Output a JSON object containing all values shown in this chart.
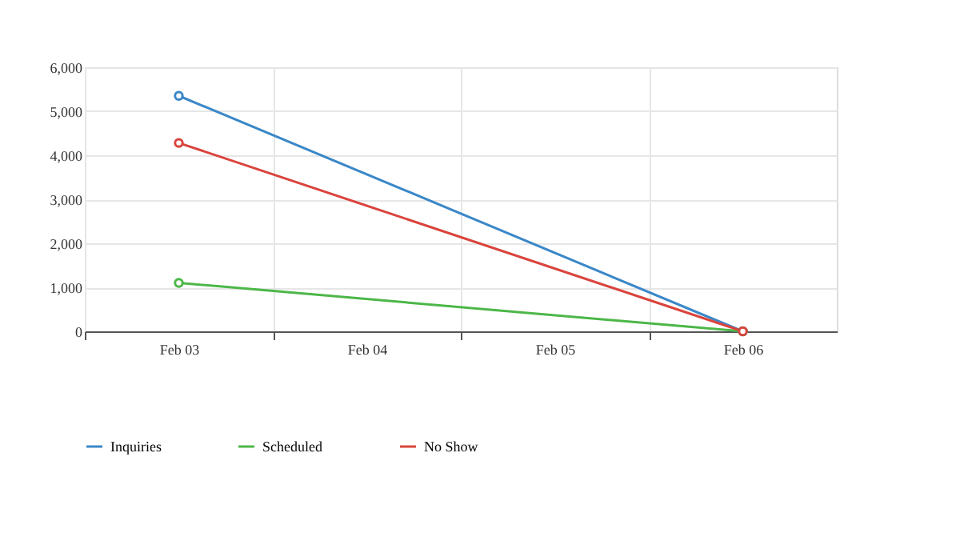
{
  "chart_data": {
    "type": "line",
    "categories": [
      "Feb 03",
      "Feb 04",
      "Feb 05",
      "Feb 06"
    ],
    "series": [
      {
        "name": "Inquiries",
        "color": "#3a87c8",
        "values": [
          5350,
          null,
          null,
          0
        ]
      },
      {
        "name": "Scheduled",
        "color": "#4cb748",
        "values": [
          1100,
          null,
          null,
          0
        ]
      },
      {
        "name": "No Show",
        "color": "#d9443c",
        "values": [
          4280,
          null,
          null,
          0
        ]
      }
    ],
    "ylim": [
      0,
      6000
    ],
    "yticks": [
      {
        "value": 0,
        "label": "0"
      },
      {
        "value": 1000,
        "label": "1,000"
      },
      {
        "value": 2000,
        "label": "2,000"
      },
      {
        "value": 3000,
        "label": "3,000"
      },
      {
        "value": 4000,
        "label": "4,000"
      },
      {
        "value": 5000,
        "label": "5,000"
      },
      {
        "value": 6000,
        "label": "6,000"
      }
    ],
    "grid": true,
    "legend": "bottom left",
    "marker": "circle",
    "line_style": "solid"
  }
}
